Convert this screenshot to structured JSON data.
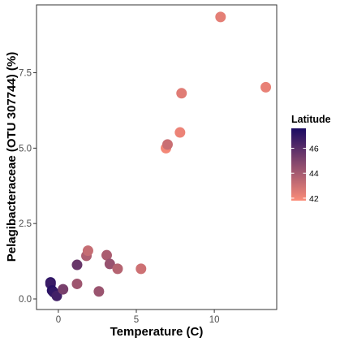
{
  "chart_data": {
    "type": "scatter",
    "title": "",
    "xlabel": "Temperature (C)",
    "ylabel": "Pelagibacteraceae (OTU 307744) (%)",
    "xlim": [
      -1.4,
      14.0
    ],
    "ylim": [
      -0.35,
      9.75
    ],
    "x_ticks": [
      0,
      5,
      10
    ],
    "y_ticks": [
      0.0,
      2.5,
      5.0,
      7.5
    ],
    "x_tick_labels": [
      "0",
      "5",
      "10"
    ],
    "y_tick_labels": [
      "0.0",
      "2.5",
      "5.0",
      "7.5"
    ],
    "grid": false,
    "legend": {
      "title": "Latitude",
      "position": "right",
      "range": [
        41.8,
        47.6
      ],
      "ticks": [
        42,
        44,
        46
      ],
      "tick_labels": [
        "42",
        "44",
        "46"
      ],
      "low_color": "#fb8c78",
      "high_color": "#1b0a63"
    },
    "points": [
      {
        "x": -0.5,
        "y": 0.55,
        "latitude": 47.1
      },
      {
        "x": -0.5,
        "y": 0.5,
        "latitude": 46.8
      },
      {
        "x": -0.4,
        "y": 0.28,
        "latitude": 47.3
      },
      {
        "x": -0.3,
        "y": 0.22,
        "latitude": 47.0
      },
      {
        "x": -0.1,
        "y": 0.1,
        "latitude": 46.6
      },
      {
        "x": 0.3,
        "y": 0.32,
        "latitude": 45.2
      },
      {
        "x": 1.2,
        "y": 1.13,
        "latitude": 45.6
      },
      {
        "x": 1.2,
        "y": 0.5,
        "latitude": 44.2
      },
      {
        "x": 1.8,
        "y": 1.43,
        "latitude": 43.8
      },
      {
        "x": 1.9,
        "y": 1.6,
        "latitude": 43.2
      },
      {
        "x": 2.6,
        "y": 0.25,
        "latitude": 44.3
      },
      {
        "x": 3.1,
        "y": 1.45,
        "latitude": 43.9
      },
      {
        "x": 3.3,
        "y": 1.16,
        "latitude": 44.4
      },
      {
        "x": 3.8,
        "y": 1.0,
        "latitude": 43.6
      },
      {
        "x": 5.3,
        "y": 1.0,
        "latitude": 43.0
      },
      {
        "x": 6.9,
        "y": 5.0,
        "latitude": 42.0
      },
      {
        "x": 7.0,
        "y": 5.12,
        "latitude": 43.1
      },
      {
        "x": 7.8,
        "y": 5.52,
        "latitude": 42.2
      },
      {
        "x": 7.9,
        "y": 6.82,
        "latitude": 42.5
      },
      {
        "x": 10.4,
        "y": 9.35,
        "latitude": 42.4
      },
      {
        "x": 13.3,
        "y": 7.02,
        "latitude": 42.3
      }
    ]
  }
}
